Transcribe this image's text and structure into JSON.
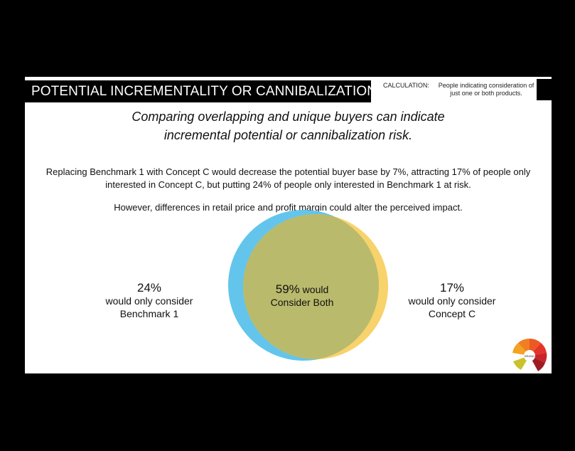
{
  "header": {
    "title": "POTENTIAL INCREMENTALITY OR CANNIBALIZATION",
    "calc_label": "CALCULATION:",
    "calc_text": "People indicating consideration of just one or both products."
  },
  "subtitle": {
    "line1": "Comparing overlapping and unique buyers can indicate",
    "line2": "incremental potential or cannibalization risk."
  },
  "body": {
    "para1_line1": "Replacing Benchmark 1 with Concept C would decrease the potential buyer base by 7%, attracting 17% of people only",
    "para1_line2": "interested in Concept C, but putting 24% of people only interested in Benchmark 1 at risk.",
    "para2": "However, differences in retail price and profit margin could alter the perceived impact."
  },
  "venn": {
    "left": {
      "pct": "24%",
      "line1": "would only consider",
      "line2": "Benchmark 1",
      "color": "#5bc2ea"
    },
    "right": {
      "pct": "17%",
      "line1": "would only consider",
      "line2": "Concept C",
      "color": "#f7cd5a"
    },
    "overlap": {
      "pct": "59%",
      "line1_suffix": " would",
      "line2": "Consider Both",
      "color": "#b9ba6c"
    }
  },
  "logo": {
    "icon": "brand-wheel-icon",
    "center_text": "BRAND"
  }
}
